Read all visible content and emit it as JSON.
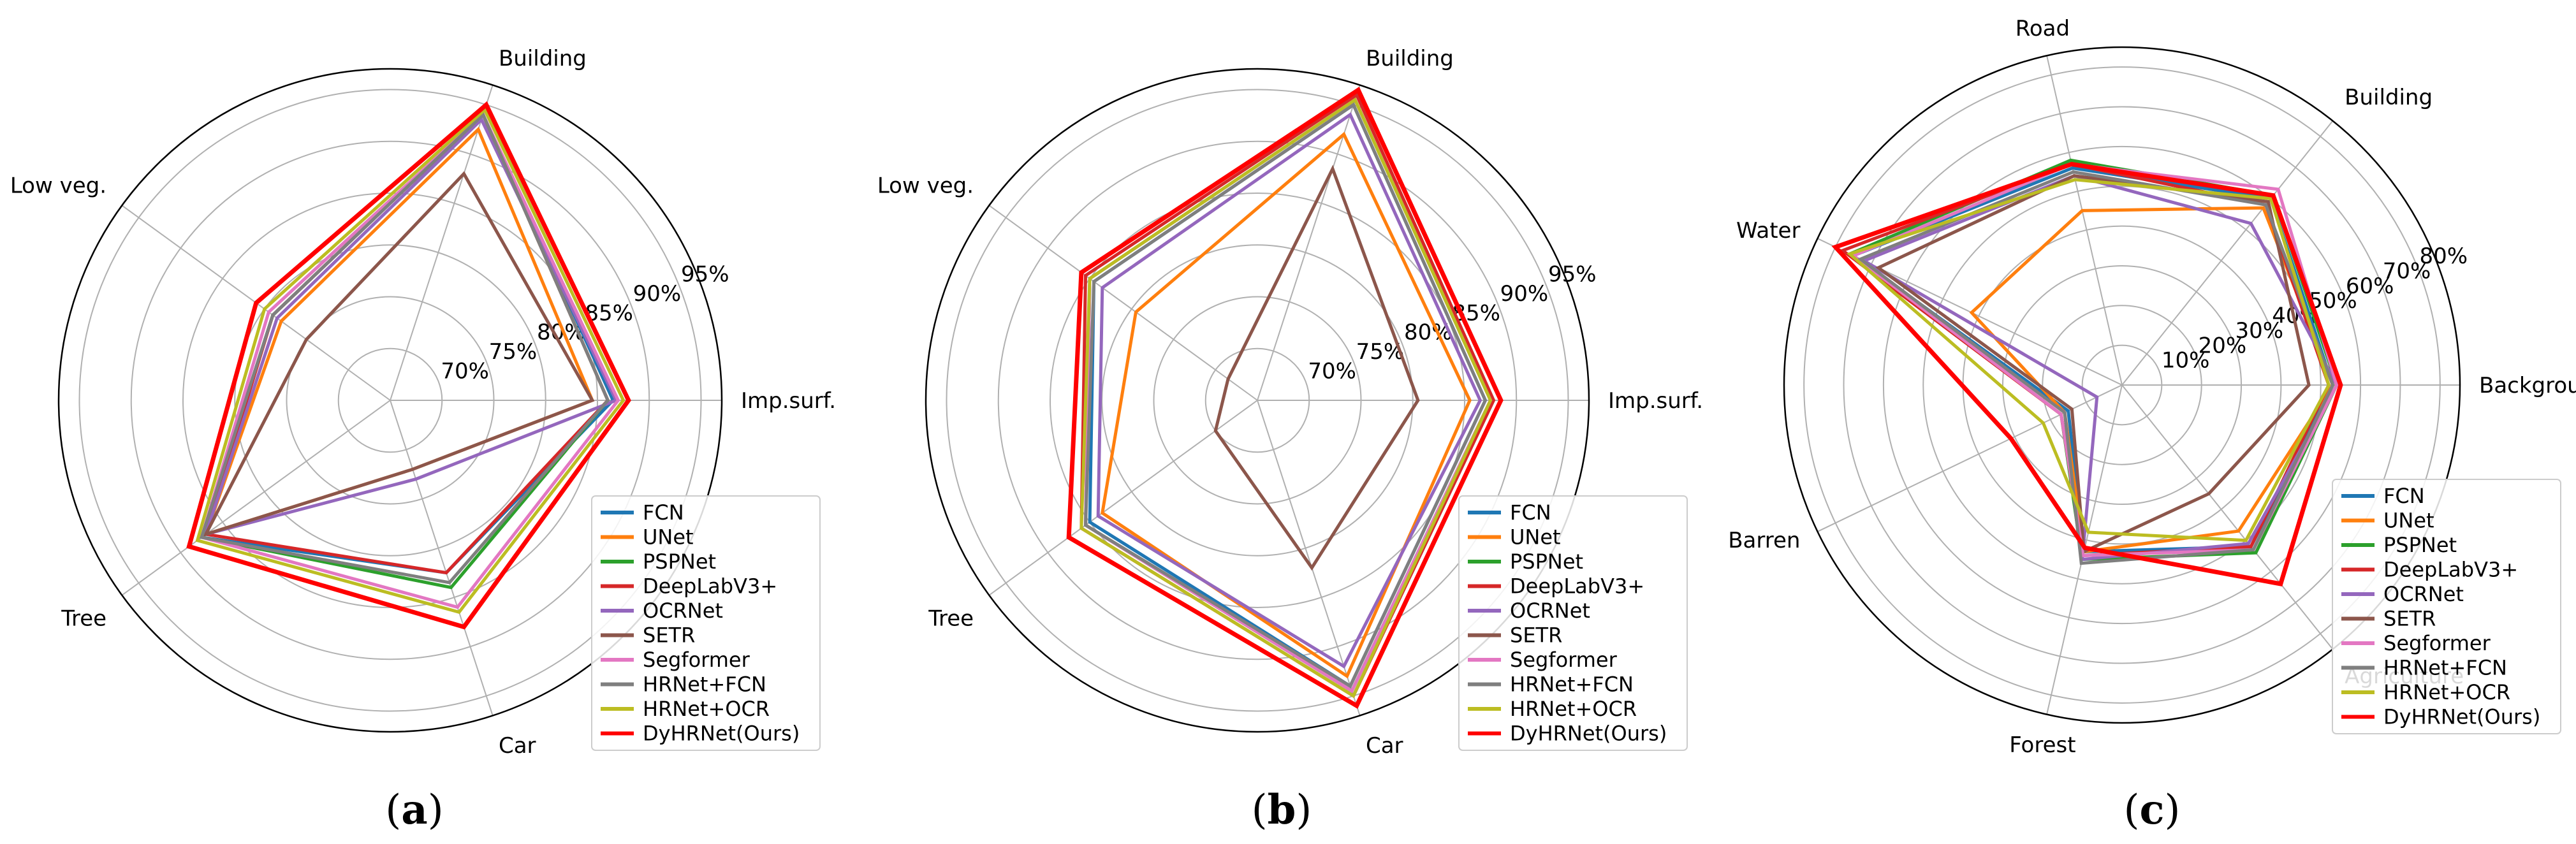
{
  "series_names": [
    "FCN",
    "UNet",
    "PSPNet",
    "DeepLabV3+",
    "OCRNet",
    "SETR",
    "Segformer",
    "HRNet+FCN",
    "HRNet+OCR",
    "DyHRNet(Ours)"
  ],
  "series_colors": [
    "#1f77b4",
    "#ff7f0e",
    "#2ca02c",
    "#d62728",
    "#9467bd",
    "#8c564b",
    "#e377c2",
    "#7f7f7f",
    "#bcbd22",
    "#ff0000"
  ],
  "chart_data": [
    {
      "type": "radar",
      "panel_label": "a",
      "axes": [
        "Imp.surf.",
        "Building",
        "Low veg.",
        "Tree",
        "Car"
      ],
      "rlim": [
        65,
        97
      ],
      "rticks": [
        70,
        75,
        80,
        85,
        90,
        95
      ],
      "rtick_labels": [
        "70%",
        "75%",
        "80%",
        "85%",
        "90%",
        "95%"
      ],
      "series": [
        {
          "name": "FCN",
          "values": [
            86.5,
            94.0,
            79.0,
            87.5,
            82.5
          ]
        },
        {
          "name": "UNet",
          "values": [
            84.5,
            92.5,
            78.0,
            87.0,
            72.0
          ]
        },
        {
          "name": "PSPNet",
          "values": [
            86.0,
            94.0,
            79.0,
            87.5,
            84.0
          ]
        },
        {
          "name": "DeepLabV3+",
          "values": [
            86.0,
            94.0,
            79.0,
            87.0,
            82.5
          ]
        },
        {
          "name": "OCRNet",
          "values": [
            86.8,
            93.5,
            78.5,
            87.0,
            73.0
          ]
        },
        {
          "name": "SETR",
          "values": [
            84.5,
            88.0,
            75.0,
            87.0,
            72.0
          ]
        },
        {
          "name": "Segformer",
          "values": [
            87.0,
            94.0,
            79.5,
            87.5,
            86.0
          ]
        },
        {
          "name": "HRNet+FCN",
          "values": [
            86.0,
            94.0,
            79.0,
            87.5,
            83.5
          ]
        },
        {
          "name": "HRNet+OCR",
          "values": [
            87.5,
            94.5,
            80.0,
            88.0,
            86.5
          ]
        },
        {
          "name": "DyHRNet(Ours)",
          "values": [
            88.0,
            95.0,
            81.0,
            89.0,
            88.0
          ]
        }
      ]
    },
    {
      "type": "radar",
      "panel_label": "b",
      "axes": [
        "Imp.surf.",
        "Building",
        "Low veg.",
        "Tree",
        "Car"
      ],
      "rlim": [
        65,
        97
      ],
      "rticks": [
        70,
        75,
        80,
        85,
        90,
        95
      ],
      "rtick_labels": [
        "70%",
        "75%",
        "80%",
        "85%",
        "90%",
        "95%"
      ],
      "series": [
        {
          "name": "FCN",
          "values": [
            87.0,
            95.0,
            84.5,
            85.0,
            94.0
          ]
        },
        {
          "name": "UNet",
          "values": [
            85.5,
            92.0,
            79.5,
            83.5,
            93.0
          ]
        },
        {
          "name": "PSPNet",
          "values": [
            87.5,
            95.5,
            85.0,
            85.5,
            94.5
          ]
        },
        {
          "name": "DeepLabV3+",
          "values": [
            87.8,
            96.0,
            85.5,
            86.0,
            95.0
          ]
        },
        {
          "name": "OCRNet",
          "values": [
            86.5,
            94.0,
            83.5,
            84.0,
            92.0
          ]
        },
        {
          "name": "SETR",
          "values": [
            80.5,
            88.5,
            68.5,
            70.0,
            82.0
          ]
        },
        {
          "name": "Segformer",
          "values": [
            87.5,
            95.5,
            85.0,
            85.5,
            94.5
          ]
        },
        {
          "name": "HRNet+FCN",
          "values": [
            87.0,
            95.0,
            84.5,
            85.5,
            94.0
          ]
        },
        {
          "name": "HRNet+OCR",
          "values": [
            87.5,
            95.5,
            85.0,
            86.0,
            95.0
          ]
        },
        {
          "name": "DyHRNet(Ours)",
          "values": [
            88.5,
            96.5,
            86.0,
            87.5,
            96.0
          ]
        }
      ]
    },
    {
      "type": "radar",
      "panel_label": "c",
      "axes": [
        "Background",
        "Building",
        "Road",
        "Water",
        "Barren",
        "Forest",
        "Agriculture"
      ],
      "rlim": [
        0,
        85
      ],
      "rticks": [
        10,
        20,
        30,
        40,
        50,
        60,
        70,
        80
      ],
      "rtick_labels": [
        "10%",
        "20%",
        "30%",
        "40%",
        "50%",
        "60%",
        "70%",
        "80%"
      ],
      "series": [
        {
          "name": "FCN",
          "values": [
            53,
            60,
            56,
            75,
            15,
            43,
            52
          ]
        },
        {
          "name": "UNet",
          "values": [
            53,
            57,
            45,
            42,
            16,
            43,
            47
          ]
        },
        {
          "name": "PSPNet",
          "values": [
            54,
            61,
            58,
            76,
            17,
            45,
            54
          ]
        },
        {
          "name": "DeepLabV3+",
          "values": [
            52,
            58,
            57,
            78,
            17,
            44,
            52
          ]
        },
        {
          "name": "OCRNet",
          "values": [
            54,
            52,
            54,
            72,
            7,
            45,
            51
          ]
        },
        {
          "name": "SETR",
          "values": [
            47,
            59,
            54,
            68,
            14,
            43,
            35
          ]
        },
        {
          "name": "Segformer",
          "values": [
            54,
            63,
            57,
            75,
            17,
            44,
            53
          ]
        },
        {
          "name": "HRNet+FCN",
          "values": [
            53,
            58,
            55,
            73,
            16,
            46,
            53
          ]
        },
        {
          "name": "HRNet+OCR",
          "values": [
            52,
            60,
            53,
            76,
            22,
            38,
            50
          ]
        },
        {
          "name": "DyHRNet(Ours)",
          "values": [
            55,
            61,
            57,
            80,
            31,
            42,
            64
          ]
        }
      ]
    }
  ],
  "figure_labels": [
    "(a)",
    "(b)",
    "(c)"
  ]
}
